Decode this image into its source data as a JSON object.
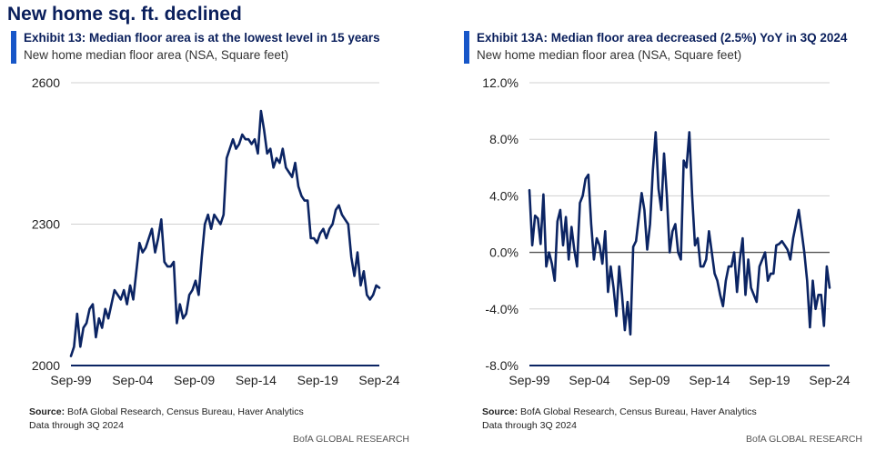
{
  "page_title": "New home sq. ft. declined",
  "colors": {
    "accent": "#0a1f5c",
    "line": "#0b2463",
    "axis": "#0b2463",
    "grid": "#d0d0d0"
  },
  "panels": [
    {
      "title": "Exhibit 13: Median floor area is at the lowest level in 15 years",
      "subtitle": "New home median floor area (NSA, Square feet)",
      "source_label": "Source:",
      "source_text": "BofA Global Research, Census Bureau, Haver Analytics",
      "data_through": "Data through 3Q 2024",
      "brand": "BofA GLOBAL RESEARCH"
    },
    {
      "title": "Exhibit 13A: Median floor area decreased (2.5%) YoY in 3Q 2024",
      "subtitle": "New home median floor area (NSA, Square feet)",
      "source_label": "Source:",
      "source_text": "BofA Global Research, Census Bureau, Haver Analytics",
      "data_through": "Data through 3Q 2024",
      "brand": "BofA GLOBAL RESEARCH"
    }
  ],
  "chart_data": [
    {
      "type": "line",
      "title": "Exhibit 13: Median floor area is at the lowest level in 15 years",
      "ylabel": "New home median floor area (NSA, Square feet)",
      "ylim": [
        2000,
        2600
      ],
      "yticks": [
        "2600",
        "2300",
        "2000"
      ],
      "ytick_values": [
        2600,
        2300,
        2000
      ],
      "xticks": [
        "Sep-99",
        "Sep-04",
        "Sep-09",
        "Sep-14",
        "Sep-19",
        "Sep-24"
      ],
      "x_start": "Sep-99",
      "x_end": "Sep-24",
      "grid": true,
      "frequency": "quarterly",
      "series": [
        {
          "values": [
            2020,
            2040,
            2110,
            2040,
            2080,
            2090,
            2120,
            2130,
            2060,
            2100,
            2080,
            2120,
            2100,
            2130,
            2160,
            2150,
            2140,
            2160,
            2130,
            2170,
            2140,
            2200,
            2260,
            2240,
            2250,
            2270,
            2290,
            2240,
            2270,
            2310,
            2220,
            2210,
            2210,
            2220,
            2090,
            2130,
            2100,
            2110,
            2150,
            2160,
            2180,
            2150,
            2230,
            2300,
            2320,
            2290,
            2320,
            2310,
            2300,
            2320,
            2440,
            2460,
            2480,
            2460,
            2470,
            2490,
            2480,
            2480,
            2470,
            2480,
            2450,
            2540,
            2500,
            2450,
            2460,
            2420,
            2440,
            2430,
            2460,
            2420,
            2410,
            2400,
            2430,
            2380,
            2360,
            2350,
            2350,
            2270,
            2270,
            2260,
            2280,
            2290,
            2270,
            2290,
            2300,
            2330,
            2340,
            2320,
            2310,
            2300,
            2230,
            2190,
            2240,
            2170,
            2200,
            2150,
            2140,
            2150,
            2170,
            2165
          ]
        }
      ]
    },
    {
      "type": "line",
      "title": "Exhibit 13A: Median floor area decreased (2.5%) YoY in 3Q 2024",
      "ylabel": "New home median floor area (NSA, Square feet)",
      "ylim": [
        -8,
        12
      ],
      "yticks": [
        "12.0%",
        "8.0%",
        "4.0%",
        "0.0%",
        "-4.0%",
        "-8.0%"
      ],
      "ytick_values": [
        12,
        8,
        4,
        0,
        -4,
        -8
      ],
      "xticks": [
        "Sep-99",
        "Sep-04",
        "Sep-09",
        "Sep-14",
        "Sep-19",
        "Sep-24"
      ],
      "x_start": "Sep-99",
      "x_end": "Sep-24",
      "grid": true,
      "frequency": "quarterly",
      "series": [
        {
          "values": [
            4.4,
            0.5,
            2.6,
            2.4,
            0.6,
            4.1,
            -1.0,
            0.0,
            -0.8,
            -2.0,
            2.2,
            3.0,
            0.5,
            2.5,
            -0.5,
            1.8,
            0.2,
            -1.0,
            3.5,
            4.0,
            5.2,
            5.5,
            2.0,
            -0.5,
            1.0,
            0.5,
            -0.8,
            1.5,
            -2.8,
            -1.0,
            -2.5,
            -4.5,
            -1.0,
            -3.0,
            -5.5,
            -3.5,
            -5.8,
            0.4,
            0.8,
            2.5,
            4.2,
            3.0,
            0.2,
            2.0,
            5.8,
            8.5,
            4.5,
            3.0,
            7.0,
            4.0,
            0.0,
            1.5,
            2.0,
            0.0,
            -0.5,
            6.5,
            6.0,
            8.5,
            4.0,
            0.5,
            1.0,
            -1.0,
            -1.0,
            -0.5,
            1.5,
            0.0,
            -1.5,
            -2.0,
            -3.0,
            -3.8,
            -2.0,
            -1.0,
            -1.0,
            0.0,
            -2.8,
            -0.5,
            1.0,
            -3.0,
            -0.5,
            -2.5,
            -3.0,
            -3.5,
            -1.0,
            -0.5,
            0.0,
            -2.0,
            -1.5,
            -1.5,
            0.5,
            0.6,
            0.8,
            0.5,
            0.2,
            -0.5,
            1.0,
            2.0,
            3.0,
            1.5,
            0.0,
            -2.0,
            -5.3,
            -2.0,
            -4.0,
            -3.0,
            -3.0,
            -5.2,
            -1.0,
            -2.5
          ]
        }
      ]
    }
  ]
}
